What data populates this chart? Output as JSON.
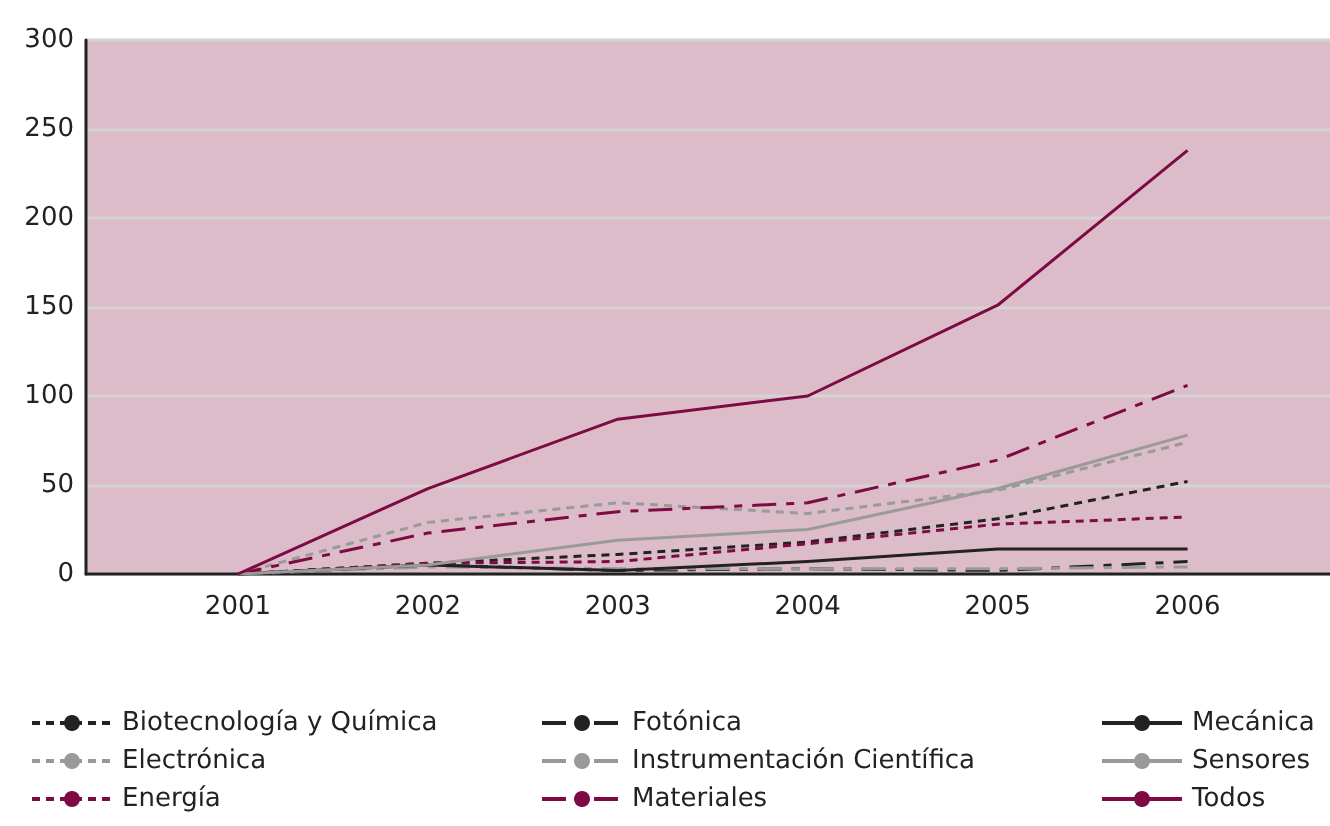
{
  "chart_data": {
    "type": "line",
    "x": [
      2001,
      2002,
      2003,
      2004,
      2005,
      2006
    ],
    "xlim": [
      2000.2,
      2006.75
    ],
    "xticks": [
      2001,
      2002,
      2003,
      2004,
      2005,
      2006
    ],
    "ylim": [
      0,
      300
    ],
    "yticks": [
      0,
      50,
      100,
      150,
      200,
      250,
      300
    ],
    "grid": "y",
    "legend": "bottom",
    "marker": "none",
    "series": [
      {
        "name": "Biotecnología y Química",
        "color": "#222222",
        "line_style": "dotted",
        "values": [
          0,
          6,
          11,
          18,
          31,
          52
        ]
      },
      {
        "name": "Electrónica",
        "color": "#9a9a9a",
        "line_style": "dotted",
        "values": [
          0,
          29,
          40,
          34,
          47,
          74
        ]
      },
      {
        "name": "Energía",
        "color": "#7d0a45",
        "line_style": "dotted",
        "values": [
          0,
          6,
          7,
          17,
          28,
          32
        ]
      },
      {
        "name": "Fotónica",
        "color": "#222222",
        "line_style": "dashed",
        "values": [
          0,
          5,
          2,
          3,
          2,
          7
        ]
      },
      {
        "name": "Instrumentación Científica",
        "color": "#9a9a9a",
        "line_style": "dashed",
        "values": [
          0,
          4,
          3,
          3,
          3,
          4
        ]
      },
      {
        "name": "Materiales",
        "color": "#7d0a45",
        "line_style": "dashed",
        "values": [
          0,
          23,
          35,
          40,
          64,
          106
        ]
      },
      {
        "name": "Mecánica",
        "color": "#222222",
        "line_style": "solid",
        "values": [
          0,
          5,
          2,
          7,
          14,
          14
        ]
      },
      {
        "name": "Sensores",
        "color": "#9a9a9a",
        "line_style": "solid",
        "values": [
          0,
          5,
          19,
          25,
          48,
          78
        ]
      },
      {
        "name": "Todos",
        "color": "#7d0a45",
        "line_style": "solid",
        "values": [
          0,
          48,
          87,
          100,
          151,
          238
        ]
      }
    ]
  }
}
